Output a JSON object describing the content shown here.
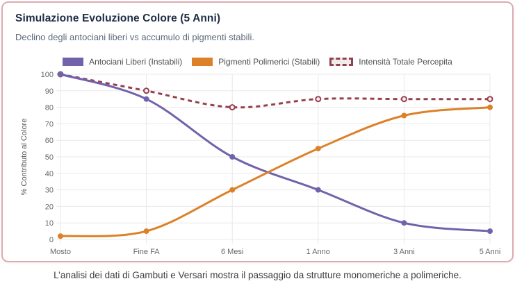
{
  "card": {
    "title": "Simulazione Evoluzione Colore (5 Anni)",
    "subtitle": "Declino degli antociani liberi vs accumulo di pigmenti stabili."
  },
  "caption": "L’analisi dei dati di Gambuti e Versari mostra il passaggio da strutture monomeriche a polimeriche.",
  "colors": {
    "card_border": "#dfaab2",
    "title_text": "#1f2c44",
    "subtitle_text": "#5c6b7a",
    "legend_text": "#4d4d4d",
    "grid": "#e8e8ea",
    "tick_text": "#65676b",
    "axis_title_text": "#595959",
    "caption_text": "#3c3c3c",
    "purple": "#7262ac",
    "orange": "#dd8128",
    "maroon": "#96404e"
  },
  "chart_data": {
    "type": "line",
    "categories": [
      "Mosto",
      "Fine FA",
      "6 Mesi",
      "1 Anno",
      "3 Anni",
      "5 Anni"
    ],
    "series": [
      {
        "name": "Antociani Liberi (Instabili)",
        "values": [
          100,
          85,
          50,
          30,
          10,
          5
        ],
        "color": "#7262ac",
        "style": "solid"
      },
      {
        "name": "Pigmenti Polimerici (Stabili)",
        "values": [
          2,
          5,
          30,
          55,
          75,
          80
        ],
        "color": "#dd8128",
        "style": "solid"
      },
      {
        "name": "Intensità Totale Percepita",
        "values": [
          100,
          90,
          80,
          85,
          85,
          85
        ],
        "color": "#96404e",
        "style": "dashed"
      }
    ],
    "ylabel": "% Contributo al Colore",
    "ylim": [
      0,
      100
    ],
    "ytick_step": 10,
    "grid": true,
    "legend_position": "top"
  }
}
